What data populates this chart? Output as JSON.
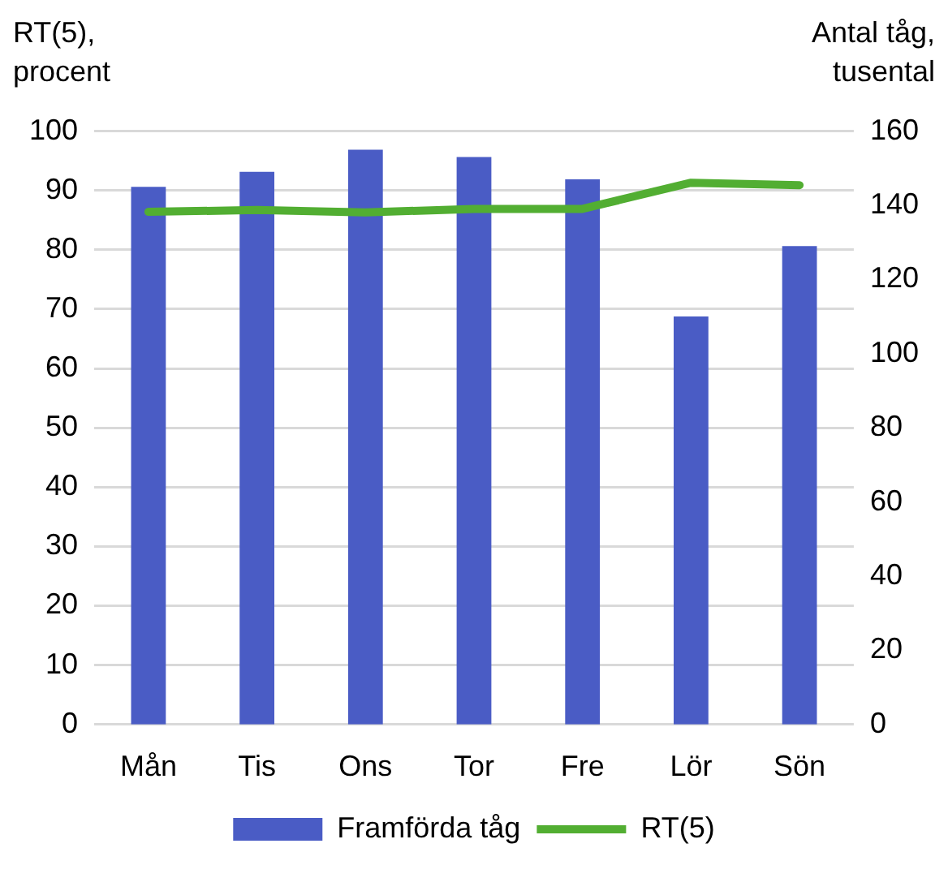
{
  "chart_data": {
    "type": "bar",
    "ylabel": "RT(5), procent",
    "y2label": "Antal tåg, tusental",
    "categories": [
      "Mån",
      "Tis",
      "Ons",
      "Tor",
      "Fre",
      "Lör",
      "Sön"
    ],
    "series": [
      {
        "name": "Framförda tåg",
        "axis": "y2",
        "color": "#4a5cc5",
        "values": [
          145,
          149,
          155,
          153,
          147,
          110,
          129
        ]
      },
      {
        "name": "RT(5)",
        "type": "line",
        "axis": "y",
        "color": "#52ae32",
        "values": [
          86.4,
          86.7,
          86.3,
          86.9,
          86.9,
          91.3,
          90.9
        ]
      }
    ],
    "ylim": [
      0,
      100
    ],
    "yticks": [
      0,
      10,
      20,
      30,
      40,
      50,
      60,
      70,
      80,
      90,
      100
    ],
    "y2lim": [
      0,
      160
    ],
    "y2ticks": [
      0,
      20,
      40,
      60,
      80,
      100,
      120,
      140,
      160
    ],
    "grid": "y",
    "legend": "bottom",
    "marker": "none",
    "line_style": "solid"
  }
}
